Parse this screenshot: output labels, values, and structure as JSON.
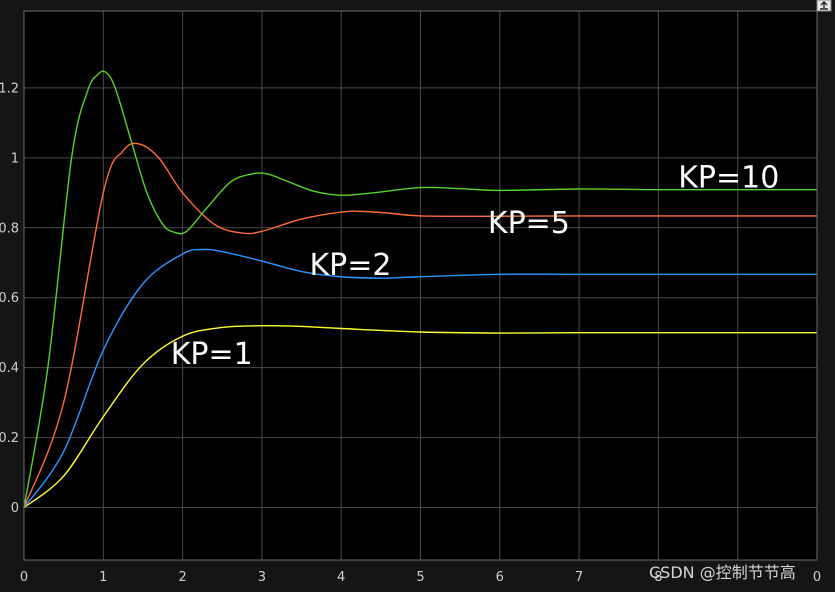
{
  "chart_data": {
    "type": "line",
    "xlabel": "",
    "ylabel": "",
    "xlim": [
      0,
      10
    ],
    "ylim": [
      -0.15,
      1.42
    ],
    "grid": true,
    "x_ticks": [
      0,
      1,
      2,
      3,
      4,
      5,
      6,
      7,
      8,
      9,
      10
    ],
    "x_tick_labels": [
      "0",
      "1",
      "2",
      "3",
      "4",
      "5",
      "6",
      "7",
      "8",
      "",
      "0"
    ],
    "y_ticks": [
      0,
      0.2,
      0.4,
      0.6,
      0.8,
      1.0,
      1.2
    ],
    "y_tick_labels": [
      "0",
      "0.2",
      "0.4",
      "0.6",
      "0.8",
      "1",
      "1.2"
    ],
    "series": [
      {
        "color": "#ffff33",
        "x": [
          0,
          0.5,
          1,
          1.5,
          2,
          2.5,
          3,
          3.5,
          4,
          5,
          6,
          7,
          8,
          9,
          10
        ],
        "y": [
          0,
          0.09,
          0.26,
          0.41,
          0.49,
          0.515,
          0.52,
          0.518,
          0.512,
          0.502,
          0.499,
          0.5,
          0.5,
          0.5,
          0.5
        ]
      },
      {
        "color": "#2f96ff",
        "x": [
          0,
          0.5,
          1,
          1.5,
          2,
          2.25,
          2.5,
          3,
          3.5,
          4,
          4.5,
          5,
          6,
          7,
          8,
          9,
          10
        ],
        "y": [
          0,
          0.16,
          0.45,
          0.64,
          0.725,
          0.738,
          0.732,
          0.705,
          0.675,
          0.66,
          0.656,
          0.66,
          0.667,
          0.667,
          0.667,
          0.667,
          0.667
        ]
      },
      {
        "color": "#ff6d3a",
        "x": [
          0,
          0.5,
          1,
          1.25,
          1.45,
          1.7,
          2,
          2.4,
          2.75,
          3,
          3.5,
          4,
          4.25,
          4.6,
          5,
          6,
          7,
          8,
          9,
          10
        ],
        "y": [
          0,
          0.3,
          0.9,
          1.02,
          1.04,
          1.0,
          0.9,
          0.81,
          0.785,
          0.79,
          0.825,
          0.845,
          0.847,
          0.842,
          0.834,
          0.833,
          0.834,
          0.834,
          0.834,
          0.834
        ]
      },
      {
        "color": "#59d12c",
        "x": [
          0,
          0.3,
          0.6,
          0.8,
          0.93,
          1.03,
          1.15,
          1.35,
          1.55,
          1.75,
          1.9,
          2.05,
          2.3,
          2.6,
          2.85,
          3.05,
          3.3,
          3.65,
          4.0,
          4.4,
          5.0,
          5.5,
          6,
          7,
          8,
          9,
          10
        ],
        "y": [
          0,
          0.4,
          1.0,
          1.19,
          1.238,
          1.245,
          1.2,
          1.05,
          0.9,
          0.81,
          0.787,
          0.79,
          0.855,
          0.93,
          0.953,
          0.955,
          0.935,
          0.905,
          0.893,
          0.9,
          0.915,
          0.912,
          0.907,
          0.911,
          0.909,
          0.909,
          0.909
        ]
      }
    ],
    "annotations": [
      {
        "text": "KP=1",
        "x": 1.85,
        "y": 0.41,
        "color": "#ffffff"
      },
      {
        "text": "KP=2",
        "x": 3.6,
        "y": 0.665,
        "color": "#ffffff"
      },
      {
        "text": "KP=5",
        "x": 5.85,
        "y": 0.785,
        "color": "#ffffff"
      },
      {
        "text": "KP=10",
        "x": 8.25,
        "y": 0.915,
        "color": "#ffffff"
      }
    ]
  },
  "watermark": "CSDN @控制节节高",
  "colors": {
    "figure_background": "#151515",
    "axes_background": "#000000",
    "grid": "#4a4a4a",
    "axes_border": "#6a6a6a",
    "tick_text": "#cfcfcf",
    "toolbar_button": "#e0e0e0"
  },
  "toolbar": {
    "icon": "restore-icon"
  }
}
